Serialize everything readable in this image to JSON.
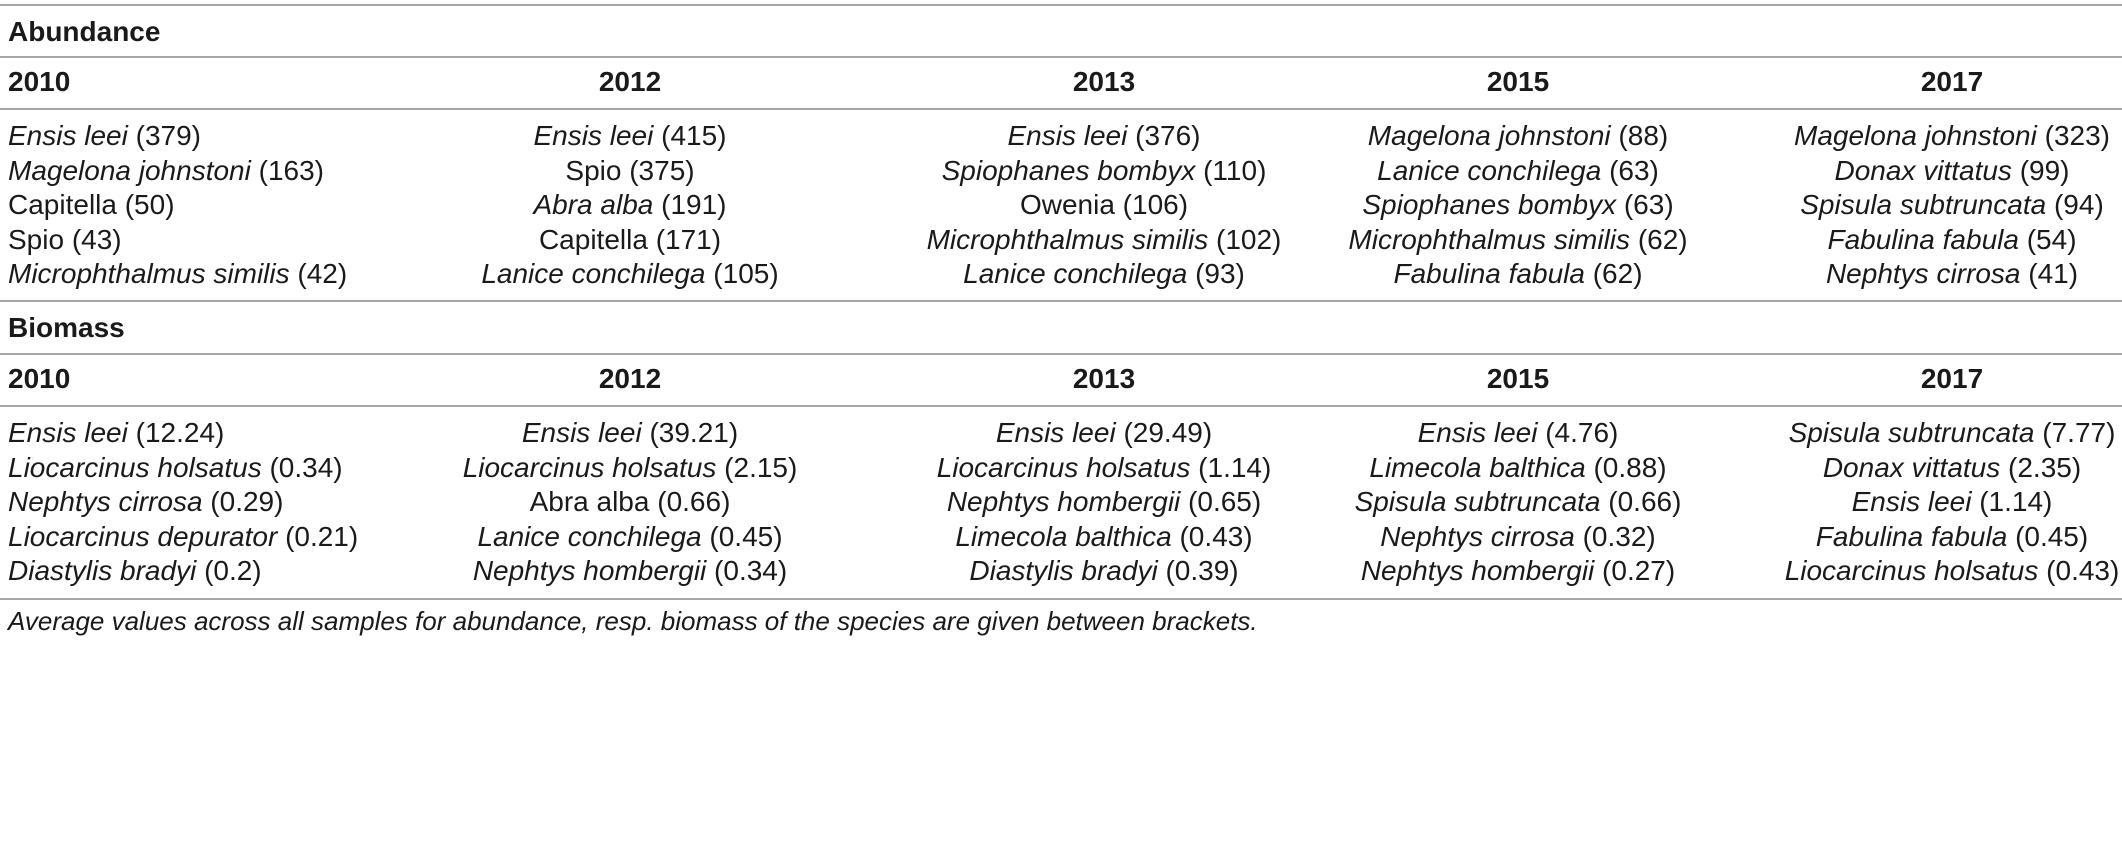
{
  "sections": {
    "abundance": {
      "title": "Abundance",
      "headers": [
        "2010",
        "2012",
        "2013",
        "2015",
        "2017"
      ],
      "rows": [
        [
          {
            "name": "Ensis leei",
            "italic": true,
            "value": "(379)"
          },
          {
            "name": "Ensis leei",
            "italic": true,
            "value": "(415)"
          },
          {
            "name": "Ensis leei",
            "italic": true,
            "value": "(376)"
          },
          {
            "name": "Magelona johnstoni",
            "italic": true,
            "value": "(88)"
          },
          {
            "name": "Magelona johnstoni",
            "italic": true,
            "value": "(323)"
          }
        ],
        [
          {
            "name": "Magelona johnstoni",
            "italic": true,
            "value": "(163)"
          },
          {
            "name": "Spio",
            "italic": false,
            "value": "(375)"
          },
          {
            "name": "Spiophanes bombyx",
            "italic": true,
            "value": "(110)"
          },
          {
            "name": "Lanice conchilega",
            "italic": true,
            "value": "(63)"
          },
          {
            "name": "Donax vittatus",
            "italic": true,
            "value": "(99)"
          }
        ],
        [
          {
            "name": "Capitella",
            "italic": false,
            "value": "(50)"
          },
          {
            "name": "Abra alba",
            "italic": true,
            "value": "(191)"
          },
          {
            "name": "Owenia",
            "italic": false,
            "value": "(106)"
          },
          {
            "name": "Spiophanes bombyx",
            "italic": true,
            "value": "(63)"
          },
          {
            "name": "Spisula subtruncata",
            "italic": true,
            "value": "(94)"
          }
        ],
        [
          {
            "name": "Spio",
            "italic": false,
            "value": "(43)"
          },
          {
            "name": "Capitella",
            "italic": false,
            "value": "(171)"
          },
          {
            "name": "Microphthalmus similis",
            "italic": true,
            "value": "(102)"
          },
          {
            "name": "Microphthalmus similis",
            "italic": true,
            "value": "(62)"
          },
          {
            "name": "Fabulina fabula",
            "italic": true,
            "value": "(54)"
          }
        ],
        [
          {
            "name": "Microphthalmus similis",
            "italic": true,
            "value": "(42)"
          },
          {
            "name": "Lanice conchilega",
            "italic": true,
            "value": "(105)"
          },
          {
            "name": "Lanice conchilega",
            "italic": true,
            "value": "(93)"
          },
          {
            "name": "Fabulina fabula",
            "italic": true,
            "value": "(62)"
          },
          {
            "name": "Nephtys cirrosa",
            "italic": true,
            "value": "(41)"
          }
        ]
      ]
    },
    "biomass": {
      "title": "Biomass",
      "headers": [
        "2010",
        "2012",
        "2013",
        "2015",
        "2017"
      ],
      "rows": [
        [
          {
            "name": "Ensis leei",
            "italic": true,
            "value": "(12.24)"
          },
          {
            "name": "Ensis leei",
            "italic": true,
            "value": "(39.21)"
          },
          {
            "name": "Ensis leei",
            "italic": true,
            "value": "(29.49)"
          },
          {
            "name": "Ensis leei",
            "italic": true,
            "value": "(4.76)"
          },
          {
            "name": "Spisula subtruncata",
            "italic": true,
            "value": "(7.77)"
          }
        ],
        [
          {
            "name": "Liocarcinus holsatus",
            "italic": true,
            "value": "(0.34)"
          },
          {
            "name": "Liocarcinus holsatus",
            "italic": true,
            "value": "(2.15)"
          },
          {
            "name": "Liocarcinus holsatus",
            "italic": true,
            "value": "(1.14)"
          },
          {
            "name": "Limecola balthica",
            "italic": true,
            "value": "(0.88)"
          },
          {
            "name": "Donax vittatus",
            "italic": true,
            "value": "(2.35)"
          }
        ],
        [
          {
            "name": "Nephtys cirrosa",
            "italic": true,
            "value": "(0.29)"
          },
          {
            "name": "Abra alba",
            "italic": false,
            "value": "(0.66)"
          },
          {
            "name": "Nephtys hombergii",
            "italic": true,
            "value": "(0.65)"
          },
          {
            "name": "Spisula subtruncata",
            "italic": true,
            "value": "(0.66)"
          },
          {
            "name": "Ensis leei",
            "italic": true,
            "value": "(1.14)"
          }
        ],
        [
          {
            "name": "Liocarcinus depurator",
            "italic": true,
            "value": "(0.21)"
          },
          {
            "name": "Lanice conchilega",
            "italic": true,
            "value": "(0.45)"
          },
          {
            "name": "Limecola balthica",
            "italic": true,
            "value": "(0.43)"
          },
          {
            "name": "Nephtys cirrosa",
            "italic": true,
            "value": "(0.32)"
          },
          {
            "name": "Fabulina fabula",
            "italic": true,
            "value": "(0.45)"
          }
        ],
        [
          {
            "name": "Diastylis bradyi",
            "italic": true,
            "value": "(0.2)"
          },
          {
            "name": "Nephtys hombergii",
            "italic": true,
            "value": "(0.34)"
          },
          {
            "name": "Diastylis bradyi",
            "italic": true,
            "value": "(0.39)"
          },
          {
            "name": "Nephtys hombergii",
            "italic": true,
            "value": "(0.27)"
          },
          {
            "name": "Liocarcinus holsatus",
            "italic": true,
            "value": "(0.43)"
          }
        ]
      ]
    }
  },
  "footnote": "Average values across all samples for abundance, resp. biomass of the species are given between brackets.",
  "colors": {
    "rule": "#a6a6a6",
    "text": "#1a1a1a"
  }
}
